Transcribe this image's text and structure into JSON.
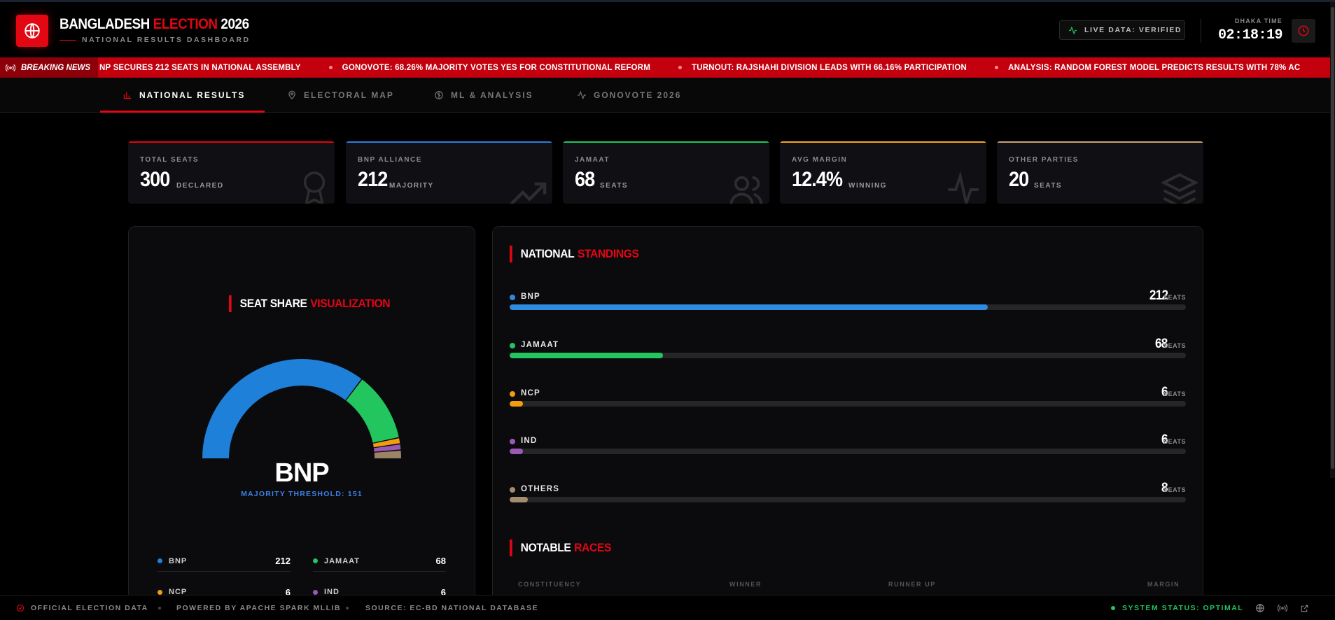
{
  "header": {
    "title_main": "BANGLADESH",
    "title_accent": "ELECTION",
    "title_year": "2026",
    "subtitle": "NATIONAL RESULTS DASHBOARD",
    "live_status": "LIVE DATA: VERIFIED",
    "time_label": "DHAKA TIME",
    "time_value": "02:18:19"
  },
  "ticker": {
    "label": "BREAKING NEWS",
    "items": [
      "NP SECURES 212 SEATS IN NATIONAL ASSEMBLY",
      "GONOVOTE: 68.26% MAJORITY VOTES YES FOR CONSTITUTIONAL REFORM",
      "TURNOUT: RAJSHAHI DIVISION LEADS WITH 66.16% PARTICIPATION",
      "ANALYSIS: RANDOM FOREST MODEL PREDICTS RESULTS WITH 78% AC"
    ]
  },
  "nav": {
    "tabs": [
      {
        "label": "NATIONAL RESULTS",
        "icon": "bar-chart-icon",
        "active": true
      },
      {
        "label": "ELECTORAL MAP",
        "icon": "map-pin-icon",
        "active": false
      },
      {
        "label": "ML & ANALYSIS",
        "icon": "brain-icon",
        "active": false
      },
      {
        "label": "GONOVOTE 2026",
        "icon": "activity-icon",
        "active": false
      }
    ]
  },
  "stats": [
    {
      "label": "TOTAL SEATS",
      "value": "300",
      "unit": "DECLARED",
      "color": "#e30613",
      "icon": "award-icon"
    },
    {
      "label": "BNP ALLIANCE",
      "value": "212",
      "unit": "MAJORITY",
      "color": "#2f7ee0",
      "icon": "trending-up-icon"
    },
    {
      "label": "JAMAAT",
      "value": "68",
      "unit": "SEATS",
      "color": "#22c55e",
      "icon": "users-icon"
    },
    {
      "label": "AVG MARGIN",
      "value": "12.4%",
      "unit": "WINNING",
      "color": "#f5a623",
      "icon": "pulse-icon"
    },
    {
      "label": "OTHER PARTIES",
      "value": "20",
      "unit": "SEATS",
      "color": "#c8a27a",
      "icon": "layers-icon"
    }
  ],
  "seat_share": {
    "title": "SEAT SHARE",
    "title_accent": "VISUALIZATION",
    "leader": "BNP",
    "threshold": "MAJORITY THRESHOLD: 151",
    "legend": [
      {
        "name": "BNP",
        "value": "212",
        "color": "#1e80d8"
      },
      {
        "name": "JAMAAT",
        "value": "68",
        "color": "#22c55e"
      },
      {
        "name": "NCP",
        "value": "6",
        "color": "#f39c12"
      },
      {
        "name": "IND",
        "value": "6",
        "color": "#9b59b6"
      }
    ]
  },
  "chart_data": {
    "type": "pie",
    "categories": [
      "BNP",
      "JAMAAT",
      "NCP",
      "IND",
      "OTHERS"
    ],
    "values": [
      212,
      68,
      6,
      6,
      8
    ],
    "colors": [
      "#1e80d8",
      "#22c55e",
      "#f39c12",
      "#9b59b6",
      "#9c8366"
    ],
    "title": "SEAT SHARE VISUALIZATION"
  },
  "standings": {
    "title": "NATIONAL",
    "title_accent": "STANDINGS",
    "total": 300,
    "unit": "SEATS",
    "parties": [
      {
        "name": "BNP",
        "seats": 212,
        "color": "#2f8ae0"
      },
      {
        "name": "JAMAAT",
        "seats": 68,
        "color": "#22c55e"
      },
      {
        "name": "NCP",
        "seats": 6,
        "color": "#f39c12"
      },
      {
        "name": "IND",
        "seats": 6,
        "color": "#9b59b6"
      },
      {
        "name": "OTHERS",
        "seats": 8,
        "color": "#a38b6d"
      }
    ]
  },
  "races": {
    "title": "NOTABLE",
    "title_accent": "RACES",
    "columns": [
      "CONSTITUENCY",
      "WINNER",
      "RUNNER UP",
      "MARGIN"
    ]
  },
  "footer": {
    "official": "OFFICIAL ELECTION DATA",
    "powered": "POWERED BY APACHE SPARK MLLIB",
    "source": "SOURCE: EC-BD NATIONAL DATABASE",
    "status": "SYSTEM STATUS: OPTIMAL"
  }
}
